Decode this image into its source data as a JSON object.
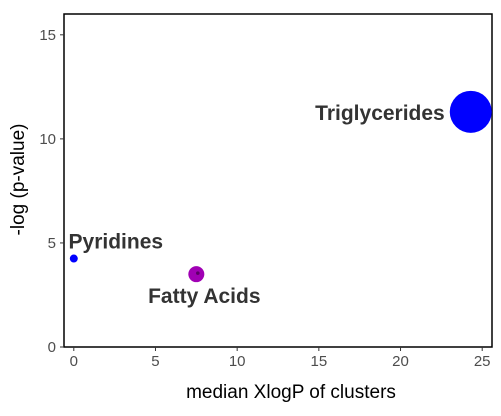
{
  "chart_data": {
    "type": "scatter",
    "title": "",
    "xlabel": "median XlogP of clusters",
    "ylabel": "-log (p-value)",
    "xlim": [
      -0.6,
      25.6
    ],
    "ylim": [
      0,
      16
    ],
    "xticks": [
      0,
      5,
      10,
      15,
      20,
      25
    ],
    "yticks": [
      0,
      5,
      10,
      15
    ],
    "grid": false,
    "points": [
      {
        "label": "Triglycerides",
        "x": 24.3,
        "y": 11.3,
        "size": "large",
        "color": "#0000ff",
        "label_position": "left"
      },
      {
        "label": "Pyridines",
        "x": 0.0,
        "y": 4.25,
        "size": "small",
        "color": "#0000ff",
        "label_position": "above"
      },
      {
        "label": "Fatty Acids",
        "x": 7.5,
        "y": 3.5,
        "size": "medium",
        "color": "#a000b4",
        "label_position": "below"
      }
    ]
  }
}
